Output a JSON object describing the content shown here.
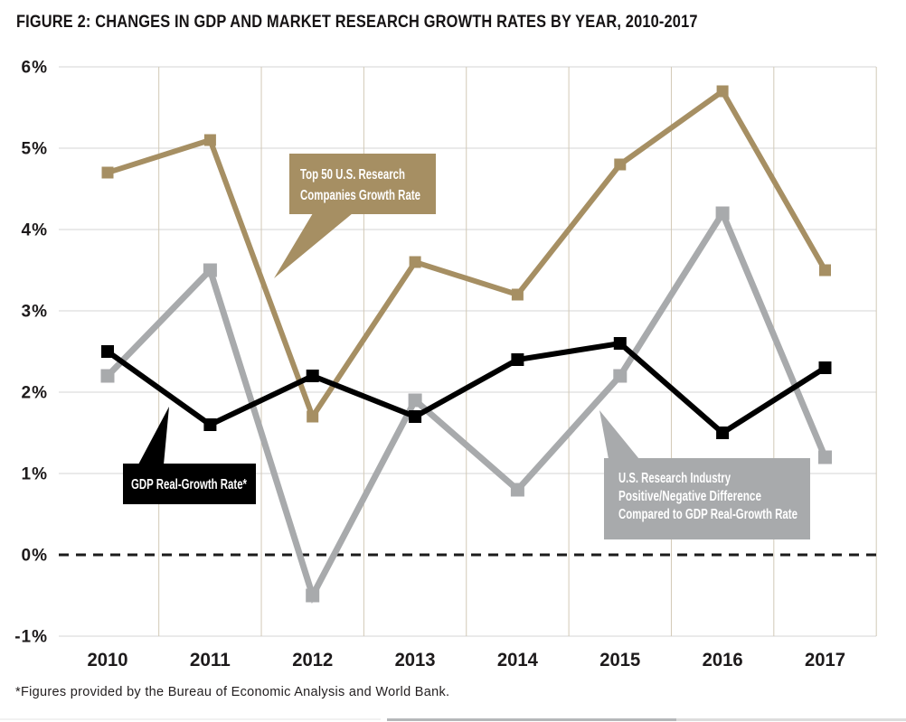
{
  "figure": {
    "title": "FIGURE 2: CHANGES IN GDP AND MARKET RESEARCH GROWTH RATES BY YEAR, 2010-2017",
    "footnote": "*Figures provided by the Bureau of Economic Analysis and World Bank."
  },
  "chart_data": {
    "type": "line",
    "x": [
      "2010",
      "2011",
      "2012",
      "2013",
      "2014",
      "2015",
      "2016",
      "2017"
    ],
    "series": [
      {
        "name": "Top 50 U.S. Research Companies Growth Rate",
        "color": "#a68f63",
        "marker": "square",
        "values": [
          4.7,
          5.1,
          1.7,
          3.6,
          3.2,
          4.8,
          5.7,
          3.5
        ]
      },
      {
        "name": "U.S. Research Industry Positive/Negative Difference Compared to GDP Real-Growth Rate",
        "color": "#a8aaac",
        "marker": "square",
        "values": [
          2.2,
          3.5,
          -0.5,
          1.9,
          0.8,
          2.2,
          4.2,
          1.2
        ]
      },
      {
        "name": "GDP Real-Growth Rate*",
        "color": "#000000",
        "marker": "square",
        "values": [
          2.5,
          1.6,
          2.2,
          1.7,
          2.4,
          2.6,
          1.5,
          2.3
        ]
      }
    ],
    "title": "FIGURE 2: CHANGES IN GDP AND MARKET RESEARCH GROWTH RATES BY YEAR, 2010-2017",
    "xlabel": "",
    "ylabel": "",
    "ylim": [
      -1,
      6
    ],
    "yticks": [
      {
        "value": 6,
        "label": "6%"
      },
      {
        "value": 5,
        "label": "5%"
      },
      {
        "value": 4,
        "label": "4%"
      },
      {
        "value": 3,
        "label": "3%"
      },
      {
        "value": 2,
        "label": "2%"
      },
      {
        "value": 1,
        "label": "1%"
      },
      {
        "value": 0,
        "label": "0%"
      },
      {
        "value": -1,
        "label": "-1%"
      }
    ],
    "zero_line_style": "dashed-black",
    "grid": {
      "horizontal": true,
      "vertical": "between-categories"
    },
    "legend_position": "inline-callouts"
  },
  "annotations": [
    {
      "id": "top50",
      "target_series": "Top 50 U.S. Research Companies Growth Rate",
      "lines": [
        "Top 50 U.S. Research",
        "Companies Growth Rate"
      ],
      "color": "#a68f63",
      "text_color": "#ffffff"
    },
    {
      "id": "gdp",
      "target_series": "GDP Real-Growth Rate*",
      "lines": [
        "GDP Real-Growth Rate*"
      ],
      "color": "#000000",
      "text_color": "#ffffff"
    },
    {
      "id": "diff",
      "target_series": "U.S. Research Industry Positive/Negative Difference Compared to GDP Real-Growth Rate",
      "lines": [
        "U.S. Research Industry",
        "Positive/Negative Difference",
        "Compared to GDP Real-Growth Rate"
      ],
      "color": "#a8aaac",
      "text_color": "#ffffff"
    }
  ],
  "scrollbar": {
    "orientation": "horizontal",
    "thumb_color": "#b5b7b9",
    "track_color": "#dddddd",
    "track_left_color": "#f1f1f1"
  }
}
